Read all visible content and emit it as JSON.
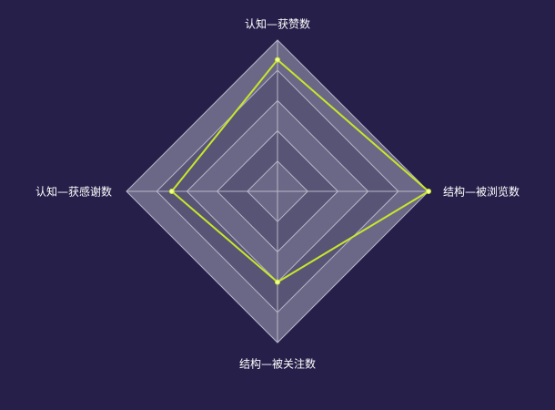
{
  "chart_data": {
    "type": "radar",
    "indicators": [
      "认知—获赞数",
      "结构—被浏览数",
      "结构—被关注数",
      "认知—获感谢数"
    ],
    "max": 100,
    "split_number": 5,
    "series": [
      {
        "values": [
          87,
          100,
          60,
          70
        ]
      }
    ],
    "colors": {
      "background": "#251f49",
      "split_area_outer": "#6b6887",
      "split_area_inner": "#575476",
      "split_line": "#b9b7c8",
      "series_line": "#c9e62b",
      "series_point": "#f2ff9a"
    }
  }
}
